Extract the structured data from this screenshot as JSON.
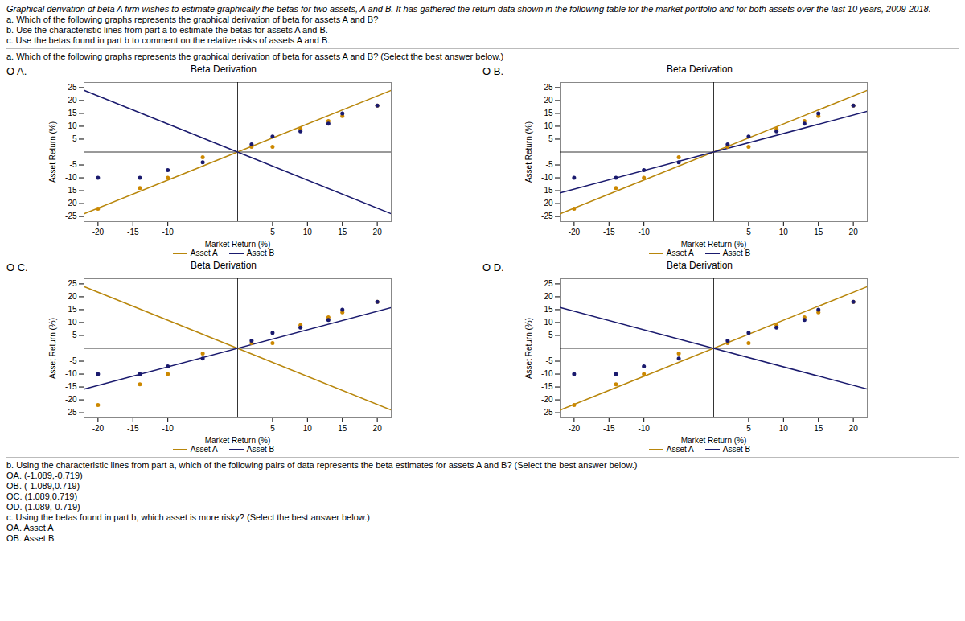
{
  "header": [
    "Graphical derivation of beta  A firm wishes to estimate graphically the betas for two assets, A and B.  It has gathered the return data shown in the following table for the market portfolio and for both assets over the last 10 years, 2009-2018.",
    "a.  Which of the following graphs represents the graphical derivation of beta for assets A and B?",
    "b.  Use the characteristic lines from part a to estimate the betas for assets A and B.",
    "c.  Use the betas found in part b to comment on the relative risks of assets A and B."
  ],
  "question_a": "a.  Which of the following graphs represents the graphical derivation of beta for assets A and B?  (Select the best answer below.)",
  "footer": [
    "b.  Using the characteristic lines from part a, which of the following pairs of data represents the beta estimates for assets A and B?  (Select the best answer below.)",
    "OA.  (-1.089,-0.719)",
    "OB.  (-1.089,0.719)",
    "OC.  (1.089,0.719)",
    "OD.  (1.089,-0.719)",
    "c.  Using the betas found in part b, which asset is more risky?  (Select the best answer below.)",
    "OA.  Asset A",
    "OB.  Asset B"
  ],
  "chart_data": [
    {
      "type": "scatter",
      "title": "Beta Derivation",
      "xlabel": "Market Return (%)",
      "ylabel": "Asset Return (%)",
      "annotations": [
        "O A."
      ],
      "xlim": [
        -22,
        22
      ],
      "ylim": [
        -27,
        27
      ],
      "xticks": [
        -20,
        -15,
        -10,
        5,
        10,
        15,
        20
      ],
      "yticks": [
        -25,
        -20,
        -15,
        -10,
        -5,
        5,
        10,
        15,
        20,
        25
      ],
      "series": [
        {
          "color": "#cc8800",
          "x": [
            -20,
            -14,
            -10,
            -5,
            2,
            5,
            9,
            13,
            15,
            20
          ],
          "values": [
            -22,
            -14,
            -10,
            -2,
            2,
            2,
            9,
            12,
            14,
            18
          ]
        },
        {
          "color": "#1a1a6e",
          "x": [
            -20,
            -14,
            -10,
            -5,
            2,
            5,
            9,
            13,
            15,
            20
          ],
          "values": [
            -10,
            -10,
            -7,
            -4,
            3,
            6,
            8,
            11,
            15,
            18
          ]
        },
        {
          "name": "Asset A",
          "type": "line",
          "color": "#b8860b",
          "x": [
            -22,
            22
          ],
          "values": [
            -23.958,
            23.958
          ]
        },
        {
          "name": "Asset B",
          "type": "line",
          "color": "#1a1a6e",
          "x": [
            -22,
            22
          ],
          "values": [
            23.958,
            -23.958
          ]
        }
      ]
    },
    {
      "type": "scatter",
      "title": "Beta Derivation",
      "xlabel": "Market Return (%)",
      "ylabel": "Asset Return (%)",
      "annotations": [
        "O B."
      ],
      "xlim": [
        -22,
        22
      ],
      "ylim": [
        -27,
        27
      ],
      "xticks": [
        -20,
        -15,
        -10,
        5,
        10,
        15,
        20
      ],
      "yticks": [
        -25,
        -20,
        -15,
        -10,
        -5,
        5,
        10,
        15,
        20,
        25
      ],
      "series": [
        {
          "color": "#cc8800",
          "x": [
            -20,
            -14,
            -10,
            -5,
            2,
            5,
            9,
            13,
            15,
            20
          ],
          "values": [
            -22,
            -14,
            -10,
            -2,
            2,
            2,
            9,
            12,
            14,
            18
          ]
        },
        {
          "color": "#1a1a6e",
          "x": [
            -20,
            -14,
            -10,
            -5,
            2,
            5,
            9,
            13,
            15,
            20
          ],
          "values": [
            -10,
            -10,
            -7,
            -4,
            3,
            6,
            8,
            11,
            15,
            18
          ]
        },
        {
          "name": "Asset A",
          "type": "line",
          "color": "#b8860b",
          "x": [
            -22,
            22
          ],
          "values": [
            -23.958,
            23.958
          ]
        },
        {
          "name": "Asset B",
          "type": "line",
          "color": "#1a1a6e",
          "x": [
            -22,
            22
          ],
          "values": [
            -15.818,
            15.818
          ]
        }
      ]
    },
    {
      "type": "scatter",
      "title": "Beta Derivation",
      "xlabel": "Market Return (%)",
      "ylabel": "Asset Return (%)",
      "annotations": [
        "O C."
      ],
      "xlim": [
        -22,
        22
      ],
      "ylim": [
        -27,
        27
      ],
      "xticks": [
        -20,
        -15,
        -10,
        5,
        10,
        15,
        20
      ],
      "yticks": [
        -25,
        -20,
        -15,
        -10,
        -5,
        5,
        10,
        15,
        20,
        25
      ],
      "series": [
        {
          "color": "#cc8800",
          "x": [
            -20,
            -14,
            -10,
            -5,
            2,
            5,
            9,
            13,
            15,
            20
          ],
          "values": [
            -22,
            -14,
            -10,
            -2,
            2,
            2,
            9,
            12,
            14,
            18
          ]
        },
        {
          "color": "#1a1a6e",
          "x": [
            -20,
            -14,
            -10,
            -5,
            2,
            5,
            9,
            13,
            15,
            20
          ],
          "values": [
            -10,
            -10,
            -7,
            -4,
            3,
            6,
            8,
            11,
            15,
            18
          ]
        },
        {
          "name": "Asset A",
          "type": "line",
          "color": "#b8860b",
          "x": [
            -22,
            22
          ],
          "values": [
            23.958,
            -23.958
          ]
        },
        {
          "name": "Asset B",
          "type": "line",
          "color": "#1a1a6e",
          "x": [
            -22,
            22
          ],
          "values": [
            -15.818,
            15.818
          ]
        }
      ]
    },
    {
      "type": "scatter",
      "title": "Beta Derivation",
      "xlabel": "Market Return (%)",
      "ylabel": "Asset Return (%)",
      "annotations": [
        "O D."
      ],
      "xlim": [
        -22,
        22
      ],
      "ylim": [
        -27,
        27
      ],
      "xticks": [
        -20,
        -15,
        -10,
        5,
        10,
        15,
        20
      ],
      "yticks": [
        -25,
        -20,
        -15,
        -10,
        -5,
        5,
        10,
        15,
        20,
        25
      ],
      "series": [
        {
          "color": "#cc8800",
          "x": [
            -20,
            -14,
            -10,
            -5,
            2,
            5,
            9,
            13,
            15,
            20
          ],
          "values": [
            -22,
            -14,
            -10,
            -2,
            2,
            2,
            9,
            12,
            14,
            18
          ]
        },
        {
          "color": "#1a1a6e",
          "x": [
            -20,
            -14,
            -10,
            -5,
            2,
            5,
            9,
            13,
            15,
            20
          ],
          "values": [
            -10,
            -10,
            -7,
            -4,
            3,
            6,
            8,
            11,
            15,
            18
          ]
        },
        {
          "name": "Asset A",
          "type": "line",
          "color": "#b8860b",
          "x": [
            -22,
            22
          ],
          "values": [
            -23.958,
            23.958
          ]
        },
        {
          "name": "Asset B",
          "type": "line",
          "color": "#1a1a6e",
          "x": [
            -22,
            22
          ],
          "values": [
            15.818,
            -15.818
          ]
        }
      ]
    }
  ]
}
